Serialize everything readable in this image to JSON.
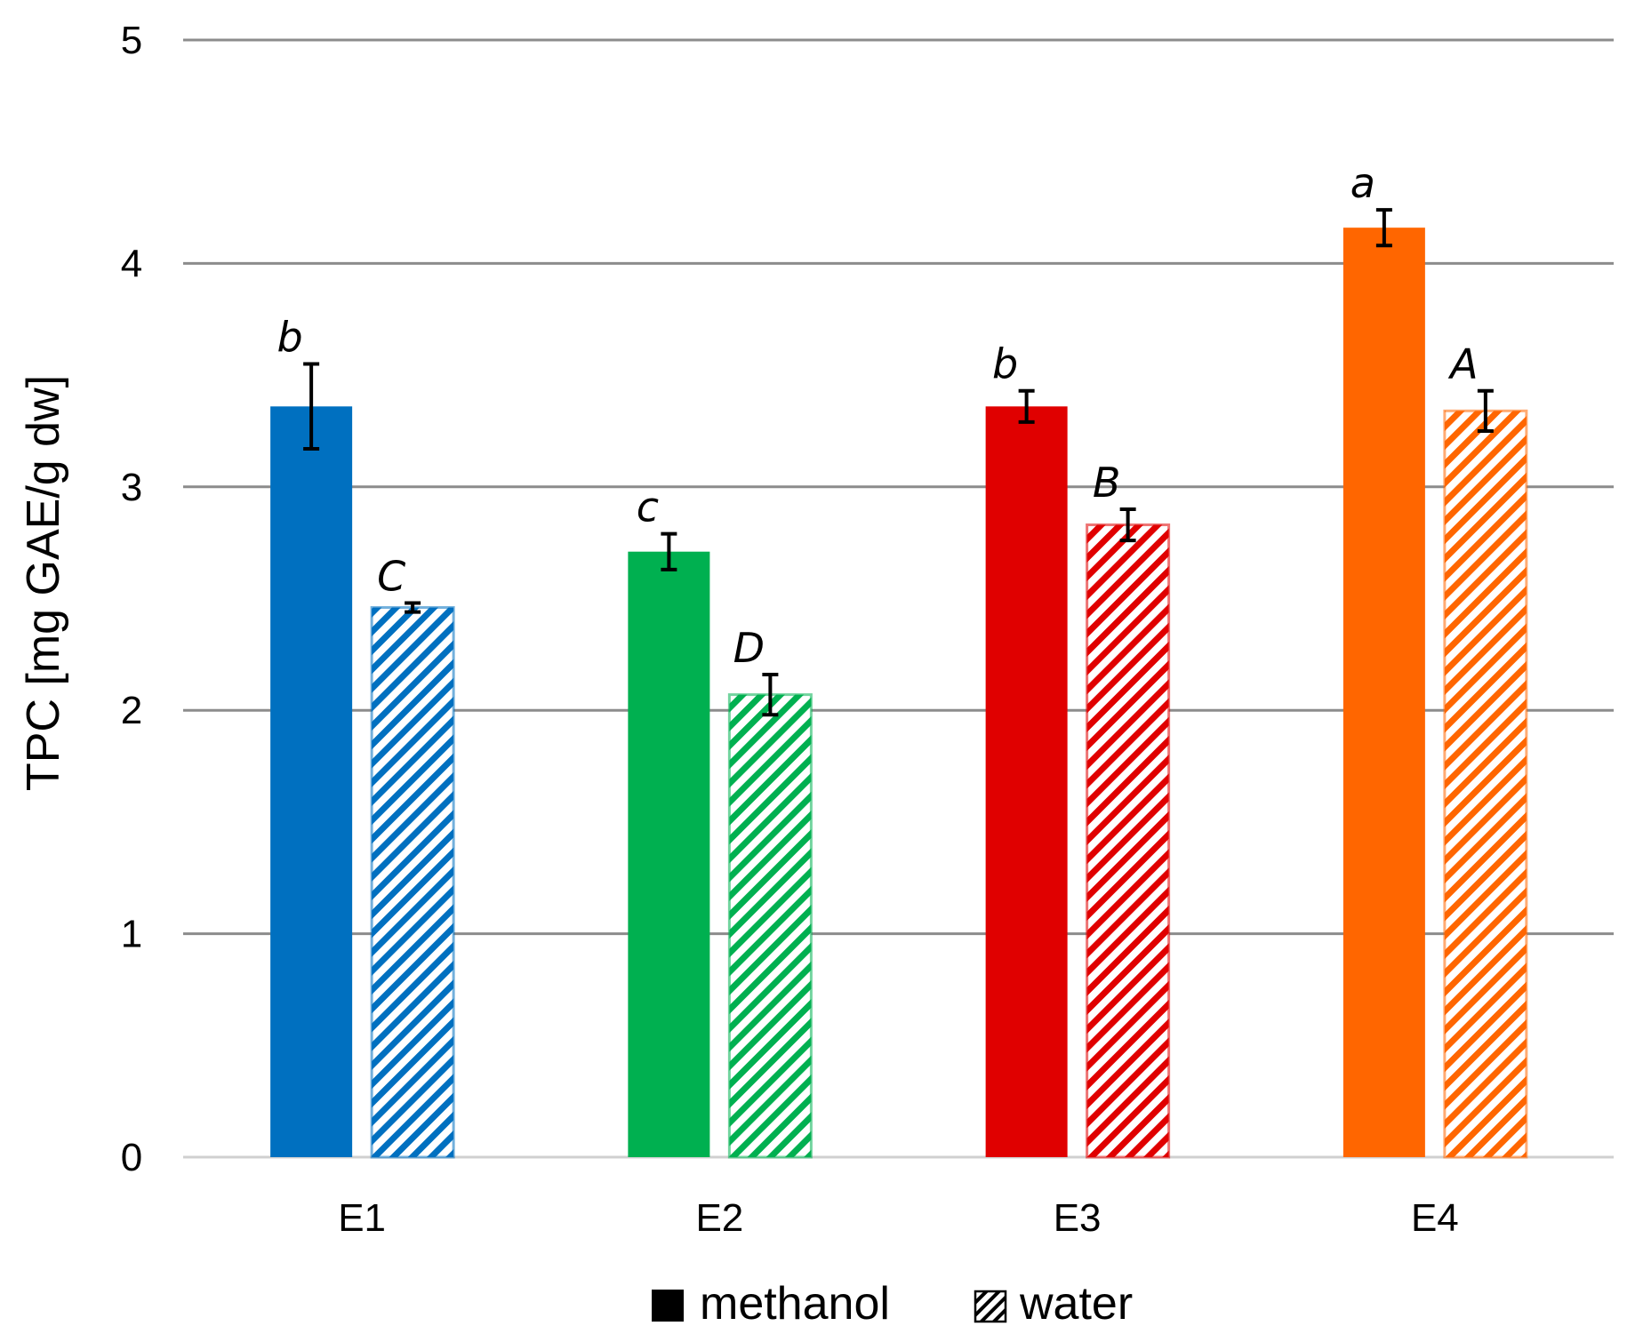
{
  "chart_data": {
    "type": "bar",
    "title": "",
    "xlabel": "",
    "ylabel": "TPC [mg GAE/g dw]",
    "ylim": [
      0,
      5
    ],
    "yticks": [
      0,
      1,
      2,
      3,
      4,
      5
    ],
    "grid": true,
    "categories": [
      "E1",
      "E2",
      "E3",
      "E4"
    ],
    "category_colors": [
      "#0070C0",
      "#00B050",
      "#E00000",
      "#FF6600"
    ],
    "series": [
      {
        "name": "methanol",
        "pattern": "solid",
        "values": [
          3.36,
          2.71,
          3.36,
          4.16
        ],
        "errors": [
          0.19,
          0.08,
          0.07,
          0.08
        ],
        "significance": [
          "b",
          "c",
          "b",
          "a"
        ]
      },
      {
        "name": "water",
        "pattern": "hatched",
        "values": [
          2.46,
          2.07,
          2.83,
          3.34
        ],
        "errors": [
          0.02,
          0.09,
          0.07,
          0.09
        ],
        "significance": [
          "C",
          "D",
          "B",
          "A"
        ]
      }
    ],
    "legend": {
      "placement": "bottom-center",
      "entries": [
        "methanol",
        "water"
      ]
    }
  }
}
